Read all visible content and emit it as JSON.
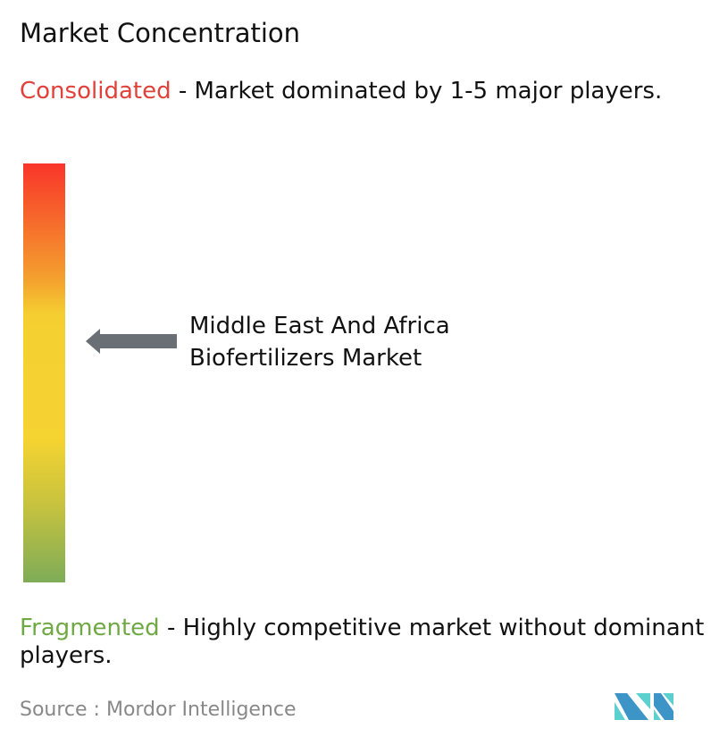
{
  "title": "Market Concentration",
  "consolidated": {
    "label": "Consolidated",
    "description": " - Market dominated by 1-5 major players.",
    "color": "#e0423a"
  },
  "fragmented": {
    "label": "Fragmented",
    "description": " - Highly competitive market without dominant players.",
    "color": "#6fa944"
  },
  "market": {
    "line1": "Middle East And Africa",
    "line2": "Biofertilizers Market",
    "arrow_color": "#6a6e75"
  },
  "source": "Source :  Mordor Intelligence",
  "logo": {
    "name": "mordor-intelligence-logo",
    "colors": [
      "#3d94c6",
      "#5ccfcf"
    ]
  }
}
